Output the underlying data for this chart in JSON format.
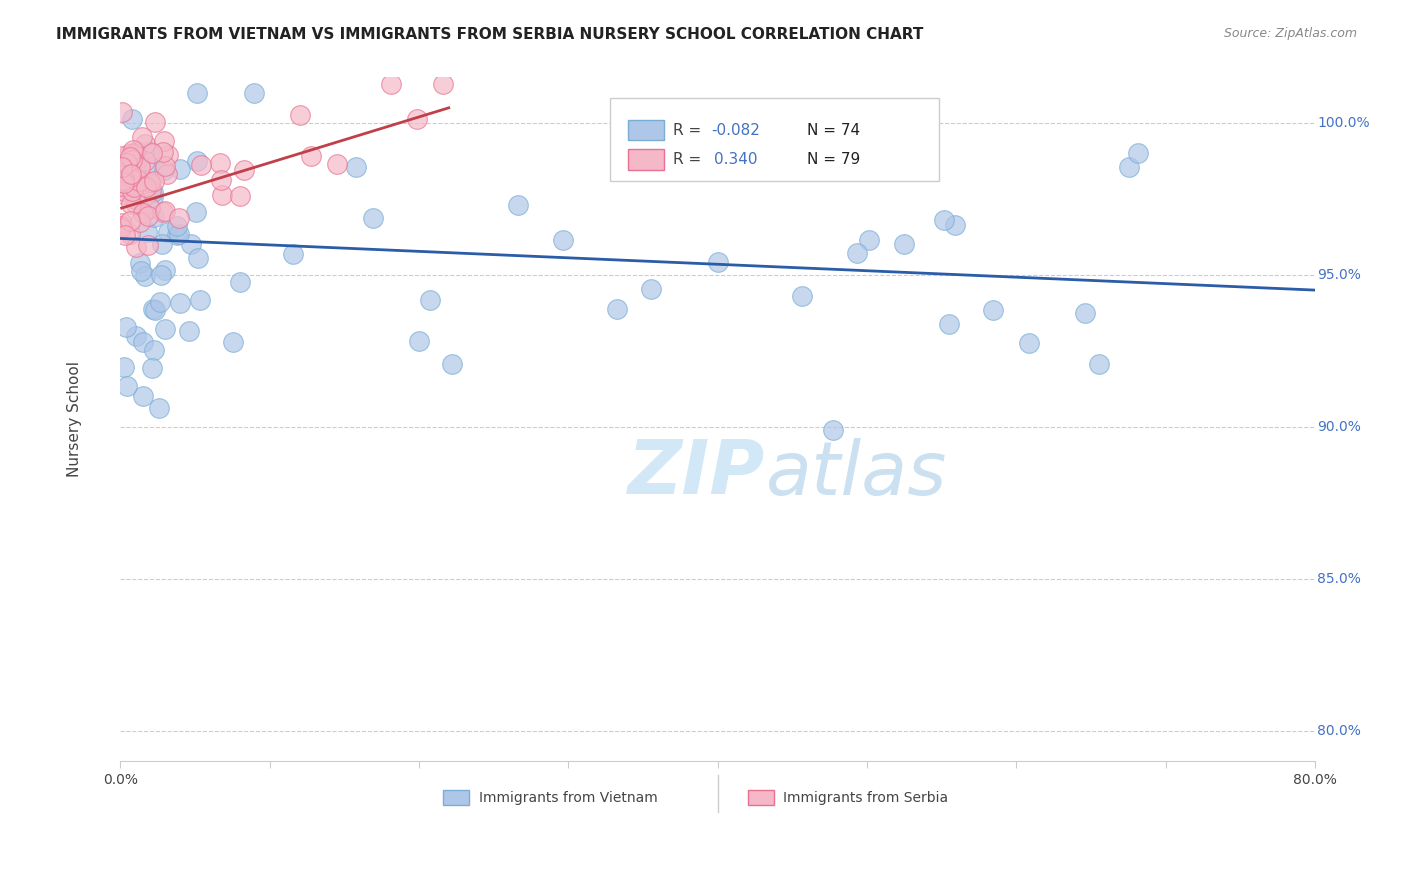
{
  "title": "IMMIGRANTS FROM VIETNAM VS IMMIGRANTS FROM SERBIA NURSERY SCHOOL CORRELATION CHART",
  "source": "Source: ZipAtlas.com",
  "ylabel": "Nursery School",
  "xlim": [
    0.0,
    80.0
  ],
  "ylim": [
    79.0,
    101.5
  ],
  "ytick_positions": [
    80,
    85,
    90,
    95,
    100
  ],
  "ytick_labels": [
    "80.0%",
    "85.0%",
    "90.0%",
    "95.0%",
    "100.0%"
  ],
  "legend_entries": [
    {
      "color": "#aec6e8",
      "R": "-0.082",
      "N": "74",
      "label": "Immigrants from Vietnam"
    },
    {
      "color": "#f4b8c8",
      "R": "0.340",
      "N": "79",
      "label": "Immigrants from Serbia"
    }
  ],
  "watermark_zip": "ZIP",
  "watermark_atlas": "atlas",
  "background_color": "#ffffff",
  "grid_color": "#cccccc",
  "blue_line_color": "#2b5ca8",
  "pink_line_color": "#c0404a",
  "vietnam_color": "#aec6e8",
  "vietnam_edge": "#7aadd4",
  "serbia_color": "#f4b8c8",
  "serbia_edge": "#e87090",
  "blue_trendline_x": [
    0,
    80
  ],
  "blue_trendline_y": [
    96.2,
    94.5
  ],
  "pink_trendline_x": [
    0.1,
    22
  ],
  "pink_trendline_y": [
    97.2,
    100.5
  ]
}
